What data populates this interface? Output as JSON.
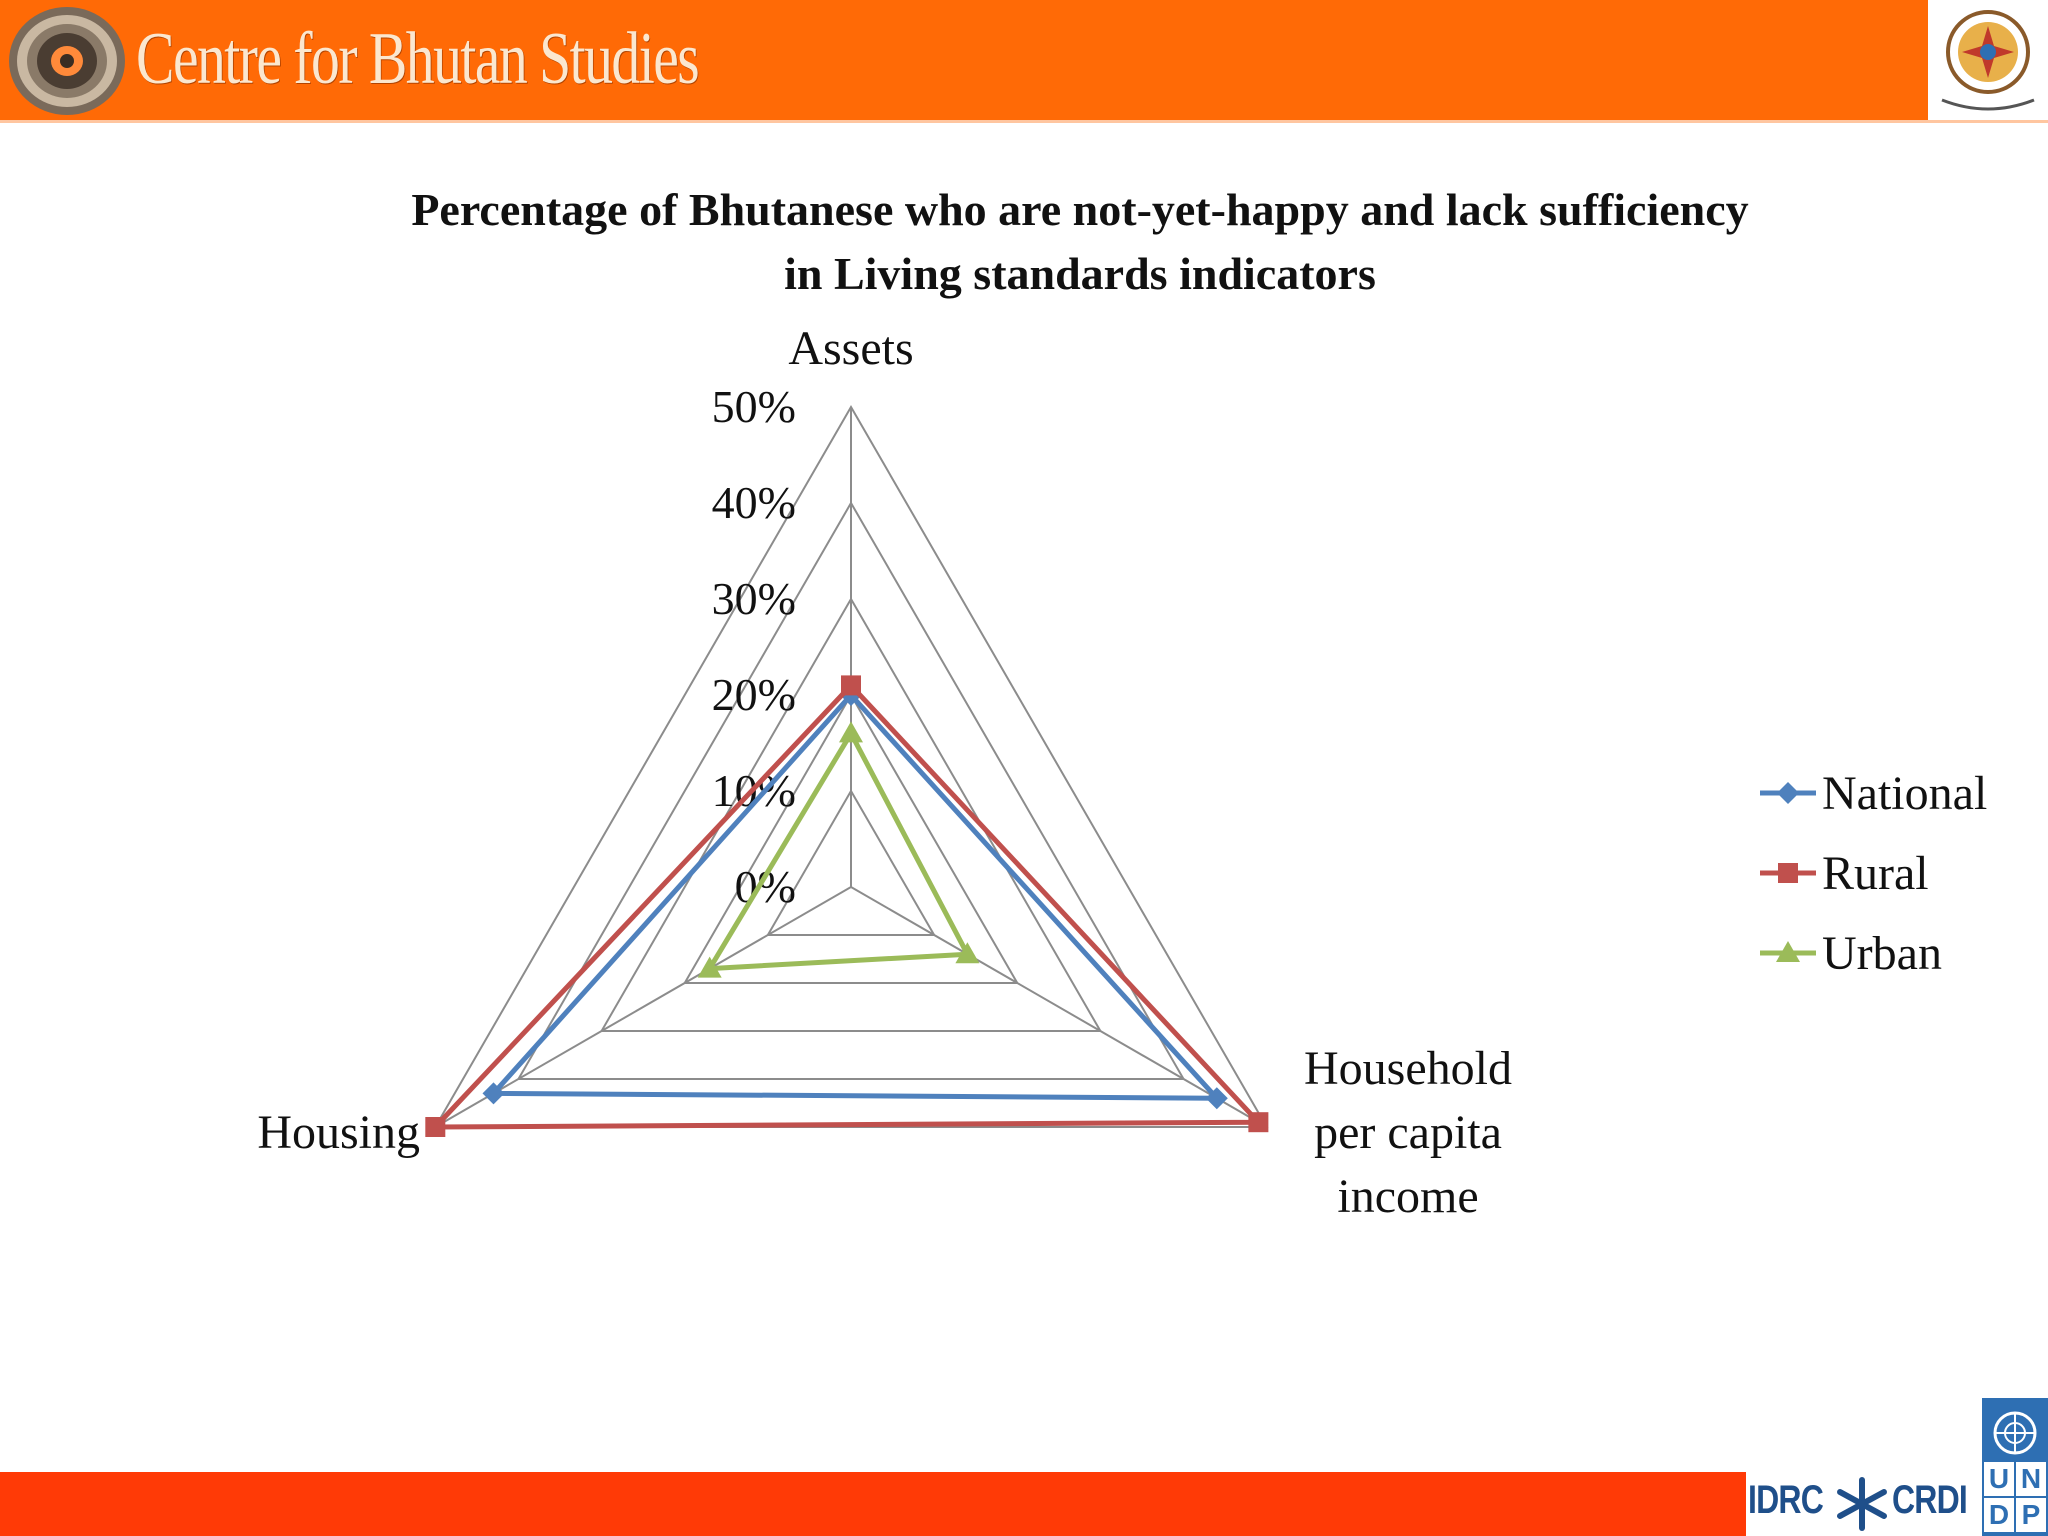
{
  "header": {
    "brand": "Centre for Bhutan Studies",
    "background_color": "#ff6a06"
  },
  "footer": {
    "background_color": "#ff3a06",
    "partner_left": "IDRC",
    "partner_right": "CRDI",
    "undp_letters": [
      "U",
      "N",
      "D",
      "P"
    ]
  },
  "chart_data": {
    "type": "radar",
    "title": "Percentage of Bhutanese who are not-yet-happy and lack sufficiency in Living standards indicators",
    "title_lines": [
      "Percentage of Bhutanese who are not-yet-happy and lack sufficiency",
      "in Living standards indicators"
    ],
    "categories": [
      "Assets",
      "Household per capita income",
      "Housing"
    ],
    "category_label_lines": [
      [
        "Assets"
      ],
      [
        "Household",
        "per capita",
        "income"
      ],
      [
        "Housing"
      ]
    ],
    "radial_ticks": [
      "0%",
      "10%",
      "20%",
      "30%",
      "40%",
      "50%"
    ],
    "range": [
      0,
      50
    ],
    "gridlines": true,
    "legend_position": "right",
    "series": [
      {
        "name": "National",
        "color": "#4f81bd",
        "marker": "diamond",
        "values": [
          20,
          44,
          43
        ]
      },
      {
        "name": "Rural",
        "color": "#c0504d",
        "marker": "square",
        "values": [
          21,
          49,
          50
        ]
      },
      {
        "name": "Urban",
        "color": "#9bbb59",
        "marker": "triangle",
        "values": [
          16,
          14,
          17
        ]
      }
    ]
  }
}
